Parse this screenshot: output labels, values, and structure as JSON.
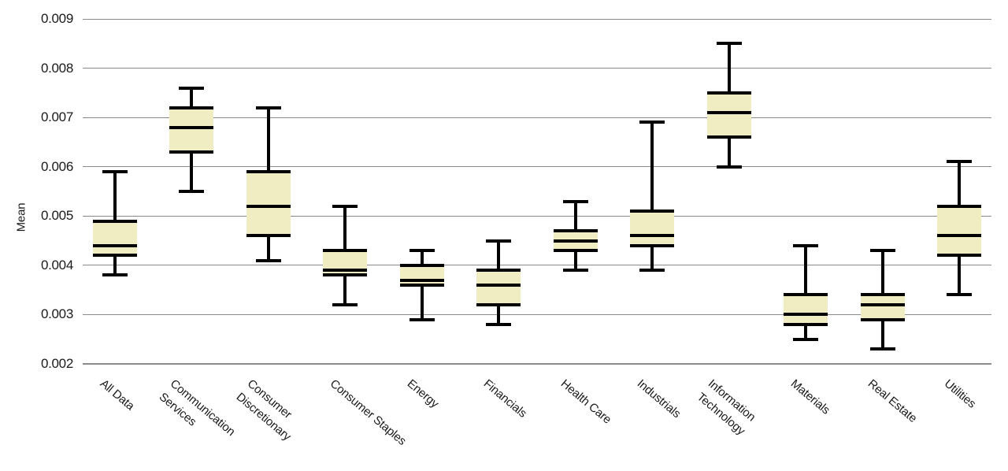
{
  "chart_data": {
    "type": "boxplot",
    "ylabel": "Mean",
    "xlabel": "",
    "ylim": [
      0.002,
      0.009
    ],
    "yticks": [
      {
        "value": 0.009,
        "label": "0.009"
      },
      {
        "value": 0.008,
        "label": "0.008"
      },
      {
        "value": 0.007,
        "label": "0.007"
      },
      {
        "value": 0.006,
        "label": "0.006"
      },
      {
        "value": 0.005,
        "label": "0.005"
      },
      {
        "value": 0.004,
        "label": "0.004"
      },
      {
        "value": 0.003,
        "label": "0.003"
      },
      {
        "value": 0.002,
        "label": "0.002"
      }
    ],
    "grid": "horizontal",
    "legend": "none",
    "categories": [
      "All Data",
      "Communication Services",
      "Consumer Discretionary",
      "Consumer Staples",
      "Energy",
      "Financials",
      "Health Care",
      "Industrials",
      "Information Technology",
      "Materials",
      "Real Estate",
      "Utilities"
    ],
    "boxes": [
      {
        "category": "All Data",
        "label": "All Data",
        "whisker_low": 0.0038,
        "q1": 0.0042,
        "median": 0.0044,
        "q3": 0.0049,
        "whisker_high": 0.0059
      },
      {
        "category": "Communication Services",
        "label": "Communication\nServices",
        "whisker_low": 0.0055,
        "q1": 0.0063,
        "median": 0.0068,
        "q3": 0.0072,
        "whisker_high": 0.0076
      },
      {
        "category": "Consumer Discretionary",
        "label": "Consumer\nDiscretionary",
        "whisker_low": 0.0041,
        "q1": 0.0046,
        "median": 0.0052,
        "q3": 0.0059,
        "whisker_high": 0.0072
      },
      {
        "category": "Consumer Staples",
        "label": "Consumer Staples",
        "whisker_low": 0.0032,
        "q1": 0.0038,
        "median": 0.0039,
        "q3": 0.0043,
        "whisker_high": 0.0052
      },
      {
        "category": "Energy",
        "label": "Energy",
        "whisker_low": 0.0029,
        "q1": 0.0036,
        "median": 0.0037,
        "q3": 0.004,
        "whisker_high": 0.0043
      },
      {
        "category": "Financials",
        "label": "Financials",
        "whisker_low": 0.0028,
        "q1": 0.0032,
        "median": 0.0036,
        "q3": 0.0039,
        "whisker_high": 0.0045
      },
      {
        "category": "Health Care",
        "label": "Health Care",
        "whisker_low": 0.0039,
        "q1": 0.0043,
        "median": 0.0045,
        "q3": 0.0047,
        "whisker_high": 0.0053
      },
      {
        "category": "Industrials",
        "label": "Industrials",
        "whisker_low": 0.0039,
        "q1": 0.0044,
        "median": 0.0046,
        "q3": 0.0051,
        "whisker_high": 0.0069
      },
      {
        "category": "Information Technology",
        "label": "Information\nTechnology",
        "whisker_low": 0.006,
        "q1": 0.0066,
        "median": 0.0071,
        "q3": 0.0075,
        "whisker_high": 0.0085
      },
      {
        "category": "Materials",
        "label": "Materials",
        "whisker_low": 0.0025,
        "q1": 0.0028,
        "median": 0.003,
        "q3": 0.0034,
        "whisker_high": 0.0044
      },
      {
        "category": "Real Estate",
        "label": "Real Estate",
        "whisker_low": 0.0023,
        "q1": 0.0029,
        "median": 0.0032,
        "q3": 0.0034,
        "whisker_high": 0.0043
      },
      {
        "category": "Utilities",
        "label": "Utilities",
        "whisker_low": 0.0034,
        "q1": 0.0042,
        "median": 0.0046,
        "q3": 0.0052,
        "whisker_high": 0.0061
      }
    ],
    "colors": {
      "box_fill": "#f0edc2",
      "box_line": "#000000",
      "gridline": "#8a8a8a",
      "axis_line": "#8a8a8a",
      "text": "#1a1a1a",
      "background": "#ffffff"
    }
  }
}
